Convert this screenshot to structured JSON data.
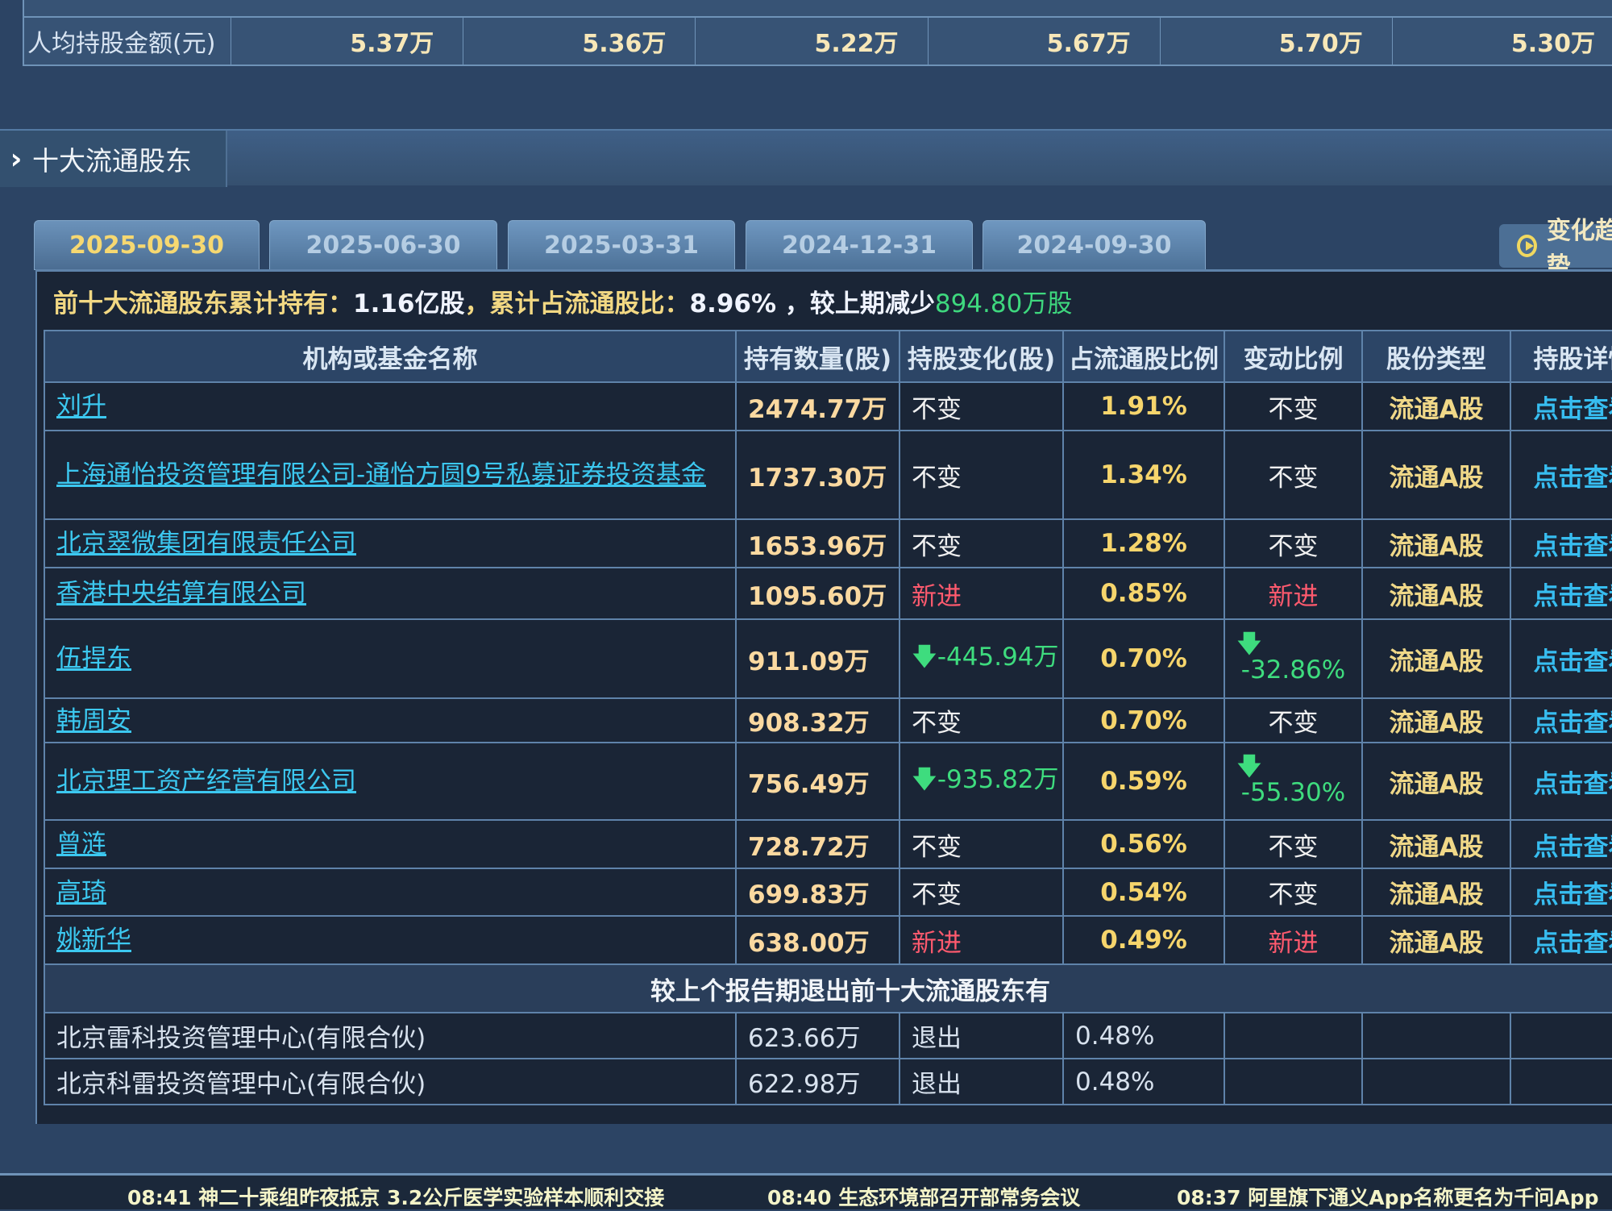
{
  "top_table": {
    "label": "人均持股金额(元)",
    "values": [
      "5.37万",
      "5.36万",
      "5.22万",
      "5.67万",
      "5.70万",
      "5.30万"
    ]
  },
  "section": {
    "title": "十大流通股东",
    "icon": "chevron-right-icon"
  },
  "tabs": [
    "2025-09-30",
    "2025-06-30",
    "2025-03-31",
    "2024-12-31",
    "2024-09-30"
  ],
  "active_tab": "2025-09-30",
  "trend_button": "变化趋势",
  "summary": {
    "prefix": "前十大流通股东累计持有：",
    "total": "1.16亿股",
    "mid": "，累计占流通股比：",
    "ratio": "8.96%",
    "suffix": " ，较上期减少",
    "change": "894.80万股"
  },
  "columns": [
    "机构或基金名称",
    "持有数量(股)",
    "持股变化(股)",
    "占流通股比例",
    "变动比例",
    "股份类型",
    "持股详情"
  ],
  "rows": [
    {
      "name": "刘升",
      "qty": "2474.77万",
      "change": "不变",
      "ratio": "1.91%",
      "pct": "不变",
      "type": "流通A股",
      "detail": "点击查看"
    },
    {
      "name": "上海通怡投资管理有限公司-通怡方圆9号私募证券投资基金",
      "qty": "1737.30万",
      "change": "不变",
      "ratio": "1.34%",
      "pct": "不变",
      "type": "流通A股",
      "detail": "点击查看"
    },
    {
      "name": "北京翠微集团有限责任公司",
      "qty": "1653.96万",
      "change": "不变",
      "ratio": "1.28%",
      "pct": "不变",
      "type": "流通A股",
      "detail": "点击查看"
    },
    {
      "name": "香港中央结算有限公司",
      "qty": "1095.60万",
      "change": "新进",
      "ratio": "0.85%",
      "pct": "新进",
      "type": "流通A股",
      "detail": "点击查看"
    },
    {
      "name": "伍捍东",
      "qty": "911.09万",
      "change": "-445.94万",
      "ratio": "0.70%",
      "pct": "-32.86%",
      "type": "流通A股",
      "detail": "点击查看"
    },
    {
      "name": "韩周安",
      "qty": "908.32万",
      "change": "不变",
      "ratio": "0.70%",
      "pct": "不变",
      "type": "流通A股",
      "detail": "点击查看"
    },
    {
      "name": "北京理工资产经营有限公司",
      "qty": "756.49万",
      "change": "-935.82万",
      "ratio": "0.59%",
      "pct": "-55.30%",
      "type": "流通A股",
      "detail": "点击查看"
    },
    {
      "name": "曾涟",
      "qty": "728.72万",
      "change": "不变",
      "ratio": "0.56%",
      "pct": "不变",
      "type": "流通A股",
      "detail": "点击查看"
    },
    {
      "name": "高琦",
      "qty": "699.83万",
      "change": "不变",
      "ratio": "0.54%",
      "pct": "不变",
      "type": "流通A股",
      "detail": "点击查看"
    },
    {
      "name": "姚新华",
      "qty": "638.00万",
      "change": "新进",
      "ratio": "0.49%",
      "pct": "新进",
      "type": "流通A股",
      "detail": "点击查看"
    }
  ],
  "exit_header": "较上个报告期退出前十大流通股东有",
  "exit_rows": [
    {
      "name": "北京雷科投资管理中心(有限合伙)",
      "qty": "623.66万",
      "change": "退出",
      "ratio": "0.48%"
    },
    {
      "name": "北京科雷投资管理中心(有限合伙)",
      "qty": "622.98万",
      "change": "退出",
      "ratio": "0.48%"
    }
  ],
  "ticker": [
    "08:41 神二十乘组昨夜抵京 3.2公斤医学实验样本顺利交接",
    "08:40 生态环境部召开部常务会议",
    "08:37 阿里旗下通义App名称更名为千问App"
  ],
  "colors": {
    "new": "#ff5a6e",
    "decrease": "#3edc7e",
    "link": "#3cc8f0",
    "value": "#fbd9a0"
  }
}
